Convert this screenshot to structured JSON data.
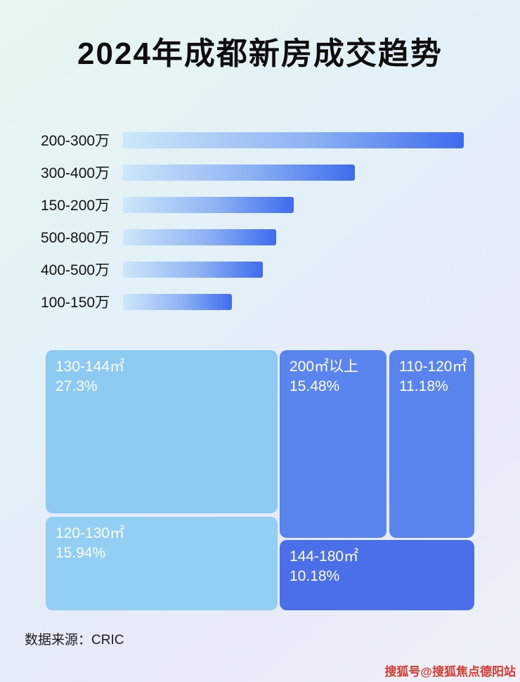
{
  "page": {
    "title": "2024年成都新房成交趋势",
    "source_label": "数据来源：CRIC",
    "watermark": "搜狐号@搜狐焦点德阳站"
  },
  "chart_data": [
    {
      "type": "bar",
      "orientation": "horizontal",
      "categories": [
        "200-300万",
        "300-400万",
        "150-200万",
        "500-800万",
        "400-500万",
        "100-150万"
      ],
      "values": [
        100,
        68,
        50,
        45,
        41,
        32
      ],
      "value_note": "relative bar lengths as % of longest bar; no numeric axis shown in image",
      "xlabel": "",
      "ylabel": "",
      "grid": false,
      "legend": false
    },
    {
      "type": "treemap",
      "items": [
        {
          "label": "130-144㎡",
          "value": 27.3,
          "value_label": "27.3%"
        },
        {
          "label": "200㎡以上",
          "value": 15.48,
          "value_label": "15.48%"
        },
        {
          "label": "110-120㎡",
          "value": 11.18,
          "value_label": "11.18%"
        },
        {
          "label": "120-130㎡",
          "value": 15.94,
          "value_label": "15.94%"
        },
        {
          "label": "144-180㎡",
          "value": 10.18,
          "value_label": "10.18%"
        }
      ],
      "legend": false
    }
  ],
  "colors": {
    "bar_gradient_start": "#cde7fa",
    "bar_gradient_end": "#3e6cee",
    "block_light_blue": "#8ccaf2",
    "block_medium_blue": "#5b85ee",
    "block_dark_blue": "#4a6fe9",
    "watermark_red": "#d93a2f",
    "title_color": "#0e0e0e"
  }
}
